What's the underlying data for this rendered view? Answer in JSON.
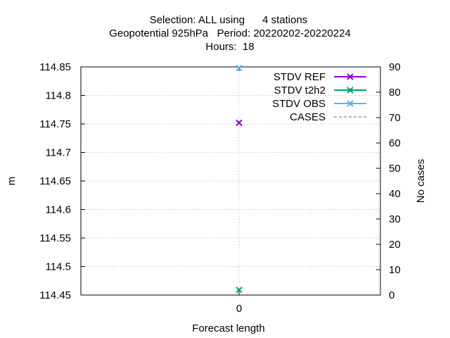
{
  "chart_data": {
    "type": "line",
    "title_lines": [
      "Selection: ALL using      4 stations",
      "Geopotential 925hPa   Period: 20220202-20220224",
      "Hours:  18"
    ],
    "xlabel": "Forecast length",
    "ylabel": "m",
    "y2label": "No cases",
    "categories": [
      "0"
    ],
    "x": [
      0
    ],
    "ylim": [
      114.45,
      114.85
    ],
    "y_ticks": [
      "114.45",
      "114.5",
      "114.55",
      "114.6",
      "114.65",
      "114.7",
      "114.75",
      "114.8",
      "114.85"
    ],
    "y2lim": [
      0,
      90
    ],
    "y2_ticks": [
      "0",
      "10",
      "20",
      "30",
      "40",
      "50",
      "60",
      "70",
      "80",
      "90"
    ],
    "grid": true,
    "legend_position": "top-right",
    "series": [
      {
        "name": "STDV REF",
        "color": "#9400d3",
        "axis": "y",
        "values": [
          114.752
        ],
        "marker": "x"
      },
      {
        "name": "STDV t2h2",
        "color": "#009e73",
        "axis": "y",
        "values": [
          114.459
        ],
        "marker": "x"
      },
      {
        "name": "STDV OBS",
        "color": "#56b4e9",
        "axis": "y",
        "values": [
          114.848
        ],
        "marker": "x"
      },
      {
        "name": "CASES",
        "color": "#999999",
        "axis": "y2",
        "values": [
          89
        ],
        "marker": "none",
        "dashed": true
      }
    ]
  }
}
